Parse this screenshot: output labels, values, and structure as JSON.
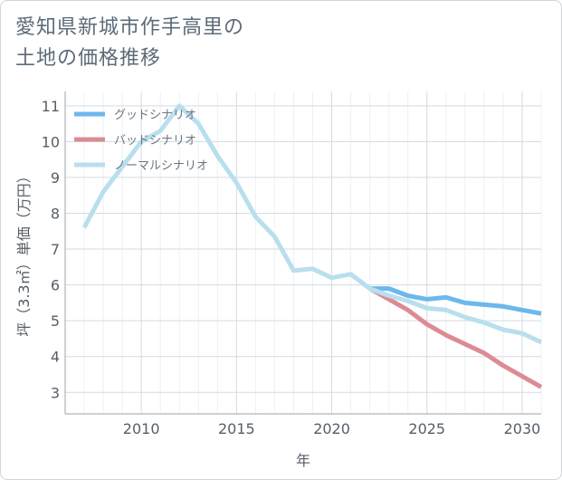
{
  "page": {
    "title_line1": "愛知県新城市作手高里の",
    "title_line2": "土地の価格推移"
  },
  "chart_data": {
    "type": "line",
    "title": "愛知県新城市作手高里の土地の価格推移",
    "xlabel": "年",
    "ylabel": "坪（3.3㎡）単価（万円）",
    "xlim": [
      2006,
      2031
    ],
    "ylim": [
      2.4,
      11.4
    ],
    "xticks": [
      2010,
      2015,
      2020,
      2025,
      2030
    ],
    "yticks": [
      3,
      4,
      5,
      6,
      7,
      8,
      9,
      10,
      11
    ],
    "grid": true,
    "legend_position": "top-left",
    "series": [
      {
        "name": "グッドシナリオ",
        "color": "#6cb8ec",
        "x": [
          2022,
          2023,
          2024,
          2025,
          2026,
          2027,
          2028,
          2029,
          2030,
          2031
        ],
        "y": [
          5.9,
          5.9,
          5.7,
          5.6,
          5.65,
          5.5,
          5.45,
          5.4,
          5.3,
          5.2
        ]
      },
      {
        "name": "バッドシナリオ",
        "color": "#dc8b94",
        "x": [
          2022,
          2023,
          2024,
          2025,
          2026,
          2027,
          2028,
          2029,
          2030,
          2031
        ],
        "y": [
          5.9,
          5.6,
          5.3,
          4.9,
          4.6,
          4.35,
          4.1,
          3.75,
          3.45,
          3.15
        ]
      },
      {
        "name": "ノーマルシナリオ",
        "color": "#b9dfee",
        "x": [
          2007,
          2008,
          2009,
          2010,
          2011,
          2012,
          2013,
          2014,
          2015,
          2016,
          2017,
          2018,
          2019,
          2020,
          2021,
          2022,
          2023,
          2024,
          2025,
          2026,
          2027,
          2028,
          2029,
          2030,
          2031
        ],
        "y": [
          7.6,
          8.6,
          9.3,
          10.0,
          10.3,
          11.0,
          10.5,
          9.6,
          8.85,
          7.9,
          7.35,
          6.4,
          6.45,
          6.2,
          6.3,
          5.9,
          5.7,
          5.55,
          5.35,
          5.3,
          5.1,
          4.95,
          4.75,
          4.65,
          4.4
        ]
      }
    ]
  }
}
